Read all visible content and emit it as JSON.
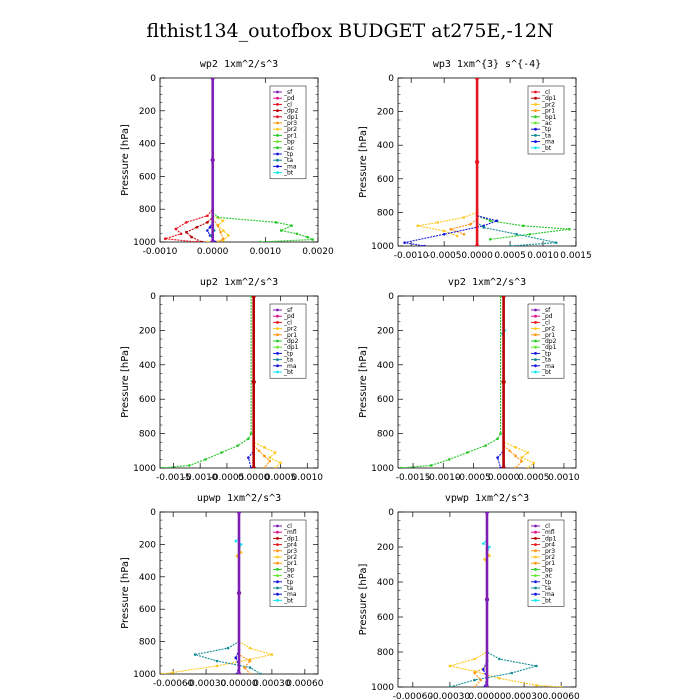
{
  "title": "flthist134_outofbox  BUDGET at275E,-12N",
  "colors": {
    "red": "#e8141e",
    "darkred": "#b40000",
    "magenta": "#e0148c",
    "purple": "#7d1eb4",
    "orange": "#ff9614",
    "gold": "#ffc81e",
    "green": "#28c828",
    "lime": "#64e632",
    "blue": "#1414dc",
    "teal": "#148c96",
    "cyan": "#14e6f0",
    "violet": "#8a2be2",
    "brown": "#a05028"
  },
  "chart_data": [
    {
      "type": "line",
      "title": "wp2   1xm^2/s^3",
      "ylabel": "Pressure [hPa]",
      "xlim": [
        -0.001,
        0.002
      ],
      "ylim": [
        1000,
        0
      ],
      "xticks": [
        -0.001,
        0.0,
        0.001,
        0.002
      ],
      "xtick_labels": [
        "-0.0010",
        "0.0000",
        "0.0010",
        "0.0020"
      ],
      "yticks": [
        0,
        200,
        400,
        600,
        800,
        1000
      ],
      "ytick_labels": [
        "0",
        "200",
        "400",
        "600",
        "800",
        "1000"
      ],
      "legend": [
        "_sf",
        "_pd",
        "_cl",
        "_dp2",
        "_dp1",
        "_pr3",
        "_pr2",
        "_pr1",
        "_bp",
        "_ac",
        "_tp",
        "_ta",
        "_ma",
        "_bt"
      ],
      "legend_colors": [
        "#7d1eb4",
        "#e0148c",
        "#e8141e",
        "#b40000",
        "#e8141e",
        "#ff9614",
        "#ffc81e",
        "#28c828",
        "#64e632",
        "#28c828",
        "#1414dc",
        "#148c96",
        "#1414dc",
        "#14e6f0"
      ],
      "legend_placement": "top-right",
      "series": [
        {
          "color": "#28c828",
          "x": [
            0,
            0,
            0.0001,
            0.0012,
            0.0015,
            0.0013,
            0.0016,
            0.0018,
            0.0019,
            0.0009
          ],
          "y": [
            0,
            820,
            850,
            880,
            900,
            930,
            950,
            970,
            985,
            1000
          ]
        },
        {
          "color": "#ffc81e",
          "x": [
            0,
            0,
            0.0002,
            0.0001,
            0.0002,
            0.0003,
            0.0002,
            -0.0001
          ],
          "y": [
            0,
            840,
            870,
            900,
            930,
            960,
            990,
            1000
          ]
        },
        {
          "color": "#ff9614",
          "x": [
            0,
            0,
            0.0001,
            0.00015,
            0.0002,
            0.0001
          ],
          "y": [
            0,
            860,
            900,
            940,
            980,
            1000
          ]
        },
        {
          "color": "#e8141e",
          "x": [
            0,
            0,
            -0.0001,
            -0.0005,
            -0.0007,
            -0.0006,
            -0.0009,
            -0.0003
          ],
          "y": [
            0,
            800,
            840,
            880,
            920,
            950,
            980,
            1000
          ]
        },
        {
          "color": "#b40000",
          "x": [
            0,
            0,
            -0.0001,
            -0.0003,
            -0.0005,
            -0.0004,
            -0.0002
          ],
          "y": [
            0,
            850,
            880,
            910,
            940,
            970,
            1000
          ]
        },
        {
          "color": "#1414dc",
          "x": [
            0,
            0,
            -5e-05,
            -0.0001,
            -5e-05,
            5e-05
          ],
          "y": [
            0,
            880,
            910,
            930,
            960,
            1000
          ]
        },
        {
          "color": "#148c96",
          "x": [
            0,
            0,
            3e-05,
            -3e-05,
            2e-05
          ],
          "y": [
            0,
            900,
            930,
            960,
            1000
          ]
        },
        {
          "color": "#7d1eb4",
          "x": [
            0,
            0,
            0
          ],
          "y": [
            0,
            500,
            1000
          ]
        }
      ]
    },
    {
      "type": "line",
      "title": "wp3   1xm^{3} s^{-4}",
      "ylabel": "Pressure [hPa]",
      "xlim": [
        -0.0012,
        0.0015
      ],
      "ylim": [
        1000,
        0
      ],
      "xticks": [
        -0.001,
        -0.0005,
        0.0,
        0.0005,
        0.001,
        0.0015
      ],
      "xtick_labels": [
        "-0.0010",
        "-0.0005",
        "0.0000",
        "0.0005",
        "0.0010",
        "0.0015"
      ],
      "yticks": [
        0,
        200,
        400,
        600,
        800,
        1000
      ],
      "ytick_labels": [
        "0",
        "200",
        "400",
        "600",
        "800",
        "1000"
      ],
      "legend": [
        "_cl",
        "_dp1",
        "_pr2",
        "_pr1",
        "_bp1",
        "_ac",
        "_tp",
        "_ta",
        "_ma",
        "_bt"
      ],
      "legend_colors": [
        "#e8141e",
        "#b40000",
        "#ffc81e",
        "#ff9614",
        "#28c828",
        "#64e632",
        "#1414dc",
        "#148c96",
        "#1414dc",
        "#14e6f0"
      ],
      "legend_placement": "top-right",
      "series": [
        {
          "color": "#28c828",
          "x": [
            0,
            0,
            0.0002,
            0.0007,
            0.0014,
            0.0008,
            0.0002
          ],
          "y": [
            0,
            820,
            850,
            880,
            900,
            930,
            960
          ]
        },
        {
          "color": "#ffc81e",
          "x": [
            0,
            0,
            -0.0002,
            -0.0006,
            -0.0009,
            -0.0005,
            -0.0003
          ],
          "y": [
            0,
            800,
            830,
            860,
            880,
            910,
            940
          ]
        },
        {
          "color": "#ff9614",
          "x": [
            0,
            0,
            -0.0001,
            -0.0004,
            -0.0002
          ],
          "y": [
            0,
            840,
            870,
            900,
            930
          ]
        },
        {
          "color": "#1414dc",
          "x": [
            0,
            0,
            0.0003,
            0.0001,
            -0.0005,
            -0.0011,
            -0.0008
          ],
          "y": [
            0,
            820,
            850,
            880,
            930,
            980,
            1000
          ]
        },
        {
          "color": "#148c96",
          "x": [
            0,
            0,
            0.0001,
            0.0006,
            0.0012,
            0.0005
          ],
          "y": [
            0,
            860,
            890,
            930,
            980,
            1000
          ]
        },
        {
          "color": "#e8141e",
          "x": [
            0,
            0,
            0
          ],
          "y": [
            0,
            500,
            1000
          ]
        }
      ]
    },
    {
      "type": "line",
      "title": "up2   1xm^2/s^3",
      "ylabel": "Pressure [hPa]",
      "xlim": [
        -0.00175,
        0.0012
      ],
      "ylim": [
        1000,
        0
      ],
      "xticks": [
        -0.0015,
        -0.001,
        -0.0005,
        0.0,
        0.0005,
        0.001
      ],
      "xtick_labels": [
        "-0.0015",
        "-0.0010",
        "-0.0005",
        "0.0000",
        "0.0005",
        "0.0010"
      ],
      "yticks": [
        0,
        200,
        400,
        600,
        800,
        1000
      ],
      "ytick_labels": [
        "0",
        "200",
        "400",
        "600",
        "800",
        "1000"
      ],
      "legend": [
        "_sf",
        "_pd",
        "_cl",
        "_pr2",
        "_pr1",
        "_dp2",
        "_dp1",
        "_tp",
        "_ta",
        "_ma",
        "_bt"
      ],
      "legend_colors": [
        "#7d1eb4",
        "#e0148c",
        "#e8141e",
        "#ffc81e",
        "#ff9614",
        "#28c828",
        "#64e632",
        "#1414dc",
        "#148c96",
        "#1414dc",
        "#14e6f0"
      ],
      "legend_placement": "top-right",
      "series": [
        {
          "color": "#28c828",
          "x": [
            -5e-05,
            -5e-05,
            -0.0001,
            -0.0003,
            -0.0006,
            -0.0009,
            -0.0012,
            -0.0017
          ],
          "y": [
            0,
            800,
            830,
            870,
            910,
            950,
            985,
            1000
          ]
        },
        {
          "color": "#ffc81e",
          "x": [
            0,
            0,
            0.0002,
            0.0004,
            0.0003,
            0.0005,
            0.0004
          ],
          "y": [
            0,
            850,
            880,
            910,
            940,
            970,
            1000
          ]
        },
        {
          "color": "#ff9614",
          "x": [
            0,
            0,
            0.0001,
            0.0002,
            0.0003,
            0.0002
          ],
          "y": [
            0,
            870,
            900,
            930,
            960,
            1000
          ]
        },
        {
          "color": "#1414dc",
          "x": [
            0,
            0,
            -0.0001,
            -5e-05
          ],
          "y": [
            0,
            900,
            940,
            1000
          ]
        },
        {
          "color": "#b40000",
          "x": [
            0,
            0,
            0
          ],
          "y": [
            0,
            500,
            1000
          ]
        }
      ]
    },
    {
      "type": "line",
      "title": "vp2   1xm^2/s^3",
      "ylabel": "Pressure [hPa]",
      "xlim": [
        -0.00175,
        0.0012
      ],
      "ylim": [
        1000,
        0
      ],
      "xticks": [
        -0.0015,
        -0.001,
        -0.0005,
        0.0,
        0.0005,
        0.001
      ],
      "xtick_labels": [
        "-0.0015",
        "-0.0010",
        "-0.0005",
        "0.0000",
        "0.0005",
        "0.0010"
      ],
      "yticks": [
        0,
        200,
        400,
        600,
        800,
        1000
      ],
      "ytick_labels": [
        "0",
        "200",
        "400",
        "600",
        "800",
        "1000"
      ],
      "legend": [
        "_sf",
        "_pd",
        "_cl",
        "_pr2",
        "_pr1",
        "_dp2",
        "_dp1",
        "_tp",
        "_ta",
        "_ma",
        "_bt"
      ],
      "legend_colors": [
        "#7d1eb4",
        "#e0148c",
        "#e8141e",
        "#ffc81e",
        "#ff9614",
        "#28c828",
        "#64e632",
        "#1414dc",
        "#148c96",
        "#1414dc",
        "#14e6f0"
      ],
      "legend_placement": "top-right",
      "series": [
        {
          "color": "#28c828",
          "x": [
            -5e-05,
            -5e-05,
            -0.0001,
            -0.0003,
            -0.0006,
            -0.0009,
            -0.0012,
            -0.0017
          ],
          "y": [
            0,
            800,
            830,
            870,
            910,
            950,
            985,
            1000
          ]
        },
        {
          "color": "#ffc81e",
          "x": [
            0,
            0,
            0.0002,
            0.0004,
            0.0003,
            0.0005,
            0.0004
          ],
          "y": [
            0,
            850,
            880,
            910,
            940,
            970,
            1000
          ]
        },
        {
          "color": "#ff9614",
          "x": [
            0,
            0,
            0.0001,
            0.0002,
            0.0003,
            0.0002
          ],
          "y": [
            0,
            870,
            900,
            930,
            960,
            1000
          ]
        },
        {
          "color": "#1414dc",
          "x": [
            0,
            0,
            -0.0001,
            -5e-05
          ],
          "y": [
            0,
            900,
            940,
            1000
          ]
        },
        {
          "color": "#14e6f0",
          "x": [
            0,
            0,
            2e-05,
            -2e-05,
            0
          ],
          "y": [
            0,
            180,
            200,
            220,
            260
          ]
        },
        {
          "color": "#b40000",
          "x": [
            0,
            0,
            0
          ],
          "y": [
            0,
            500,
            1000
          ]
        }
      ]
    },
    {
      "type": "line",
      "title": "upwp   1xm^2/s^3",
      "ylabel": "Pressure [hPa]",
      "xlim": [
        -0.00072,
        0.00072
      ],
      "ylim": [
        1000,
        0
      ],
      "xticks": [
        -0.0006,
        -0.0003,
        0.0,
        0.0003,
        0.0006
      ],
      "xtick_labels": [
        "-0.00060",
        "-0.00030",
        "0.00000",
        "0.00030",
        "0.00060"
      ],
      "yticks": [
        0,
        200,
        400,
        600,
        800,
        1000
      ],
      "ytick_labels": [
        "0",
        "200",
        "400",
        "600",
        "800",
        "1000"
      ],
      "legend": [
        "_cl",
        "_mfl",
        "_dp1",
        "_pr4",
        "_pr3",
        "_pr2",
        "_pr1",
        "_bp",
        "_ac",
        "_tp",
        "_ta",
        "_ma",
        "_bt"
      ],
      "legend_colors": [
        "#7d1eb4",
        "#e0148c",
        "#b40000",
        "#e8141e",
        "#ff9614",
        "#ffc81e",
        "#ff9614",
        "#28c828",
        "#64e632",
        "#1414dc",
        "#148c96",
        "#1414dc",
        "#14e6f0"
      ],
      "legend_placement": "top-right",
      "series": [
        {
          "color": "#ffc81e",
          "x": [
            0,
            0,
            0.0001,
            0.0003,
            0.0001,
            -0.0002,
            -0.0006,
            -0.0007
          ],
          "y": [
            0,
            800,
            840,
            880,
            910,
            950,
            990,
            1000
          ]
        },
        {
          "color": "#148c96",
          "x": [
            0,
            0,
            -0.0001,
            -0.0004,
            -0.0002,
            0.0001,
            0.0002
          ],
          "y": [
            0,
            800,
            840,
            880,
            920,
            960,
            1000
          ]
        },
        {
          "color": "#ff9614",
          "x": [
            0,
            0,
            0.0001,
            5e-05,
            0.0001
          ],
          "y": [
            0,
            880,
            920,
            960,
            1000
          ]
        },
        {
          "color": "#1414dc",
          "x": [
            0,
            0,
            -3e-05,
            0,
            -2e-05
          ],
          "y": [
            0,
            850,
            900,
            950,
            1000
          ]
        },
        {
          "color": "#14e6f0",
          "x": [
            0,
            0,
            -3e-05,
            2e-05,
            0
          ],
          "y": [
            0,
            160,
            180,
            200,
            240
          ]
        },
        {
          "color": "#ffc81e",
          "x": [
            0,
            0,
            2e-05,
            -2e-05,
            0
          ],
          "y": [
            0,
            220,
            250,
            270,
            300
          ]
        },
        {
          "color": "#7d1eb4",
          "x": [
            0,
            0,
            0
          ],
          "y": [
            0,
            500,
            1000
          ]
        }
      ]
    },
    {
      "type": "line",
      "title": "vpwp   1xm^2/s^3",
      "ylabel": "Pressure [hPa]",
      "xlim": [
        -0.00072,
        0.00072
      ],
      "ylim": [
        1000,
        0
      ],
      "xticks": [
        -0.0006,
        -0.0003,
        0.0,
        0.0003,
        0.0006
      ],
      "xtick_labels": [
        "-0.00060",
        "-0.00030",
        "0.00000",
        "0.00030",
        "0.00060"
      ],
      "yticks": [
        0,
        200,
        400,
        600,
        800,
        1000
      ],
      "ytick_labels": [
        "0",
        "200",
        "400",
        "600",
        "800",
        "1000"
      ],
      "legend": [
        "_cl",
        "_mfl",
        "_dp1",
        "_pr4",
        "_pr3",
        "_pr2",
        "_pr1",
        "_bp",
        "_ac",
        "_tp",
        "_ta",
        "_ma",
        "_bt"
      ],
      "legend_colors": [
        "#7d1eb4",
        "#e0148c",
        "#b40000",
        "#e8141e",
        "#ff9614",
        "#ffc81e",
        "#ff9614",
        "#28c828",
        "#64e632",
        "#1414dc",
        "#148c96",
        "#1414dc",
        "#14e6f0"
      ],
      "legend_placement": "top-right",
      "series": [
        {
          "color": "#ffc81e",
          "x": [
            0,
            0,
            -0.0001,
            -0.0003,
            -0.0001,
            0.0001,
            0.0004,
            0.0006
          ],
          "y": [
            0,
            800,
            840,
            880,
            910,
            950,
            990,
            1000
          ]
        },
        {
          "color": "#148c96",
          "x": [
            0,
            0,
            0.0001,
            0.0004,
            0.0002,
            -0.0001,
            -0.0003
          ],
          "y": [
            0,
            800,
            840,
            880,
            920,
            960,
            1000
          ]
        },
        {
          "color": "#ff9614",
          "x": [
            0,
            0,
            -0.0001,
            -5e-05,
            -0.0001
          ],
          "y": [
            0,
            880,
            920,
            960,
            1000
          ]
        },
        {
          "color": "#1414dc",
          "x": [
            0,
            0,
            -3e-05,
            0,
            -2e-05
          ],
          "y": [
            0,
            850,
            900,
            950,
            1000
          ]
        },
        {
          "color": "#14e6f0",
          "x": [
            0,
            0,
            -3e-05,
            2e-05,
            0
          ],
          "y": [
            0,
            160,
            180,
            200,
            240
          ]
        },
        {
          "color": "#ffc81e",
          "x": [
            0,
            0,
            2e-05,
            -2e-05,
            0
          ],
          "y": [
            0,
            220,
            250,
            270,
            300
          ]
        },
        {
          "color": "#7d1eb4",
          "x": [
            0,
            0,
            0
          ],
          "y": [
            0,
            500,
            1000
          ]
        }
      ]
    }
  ]
}
